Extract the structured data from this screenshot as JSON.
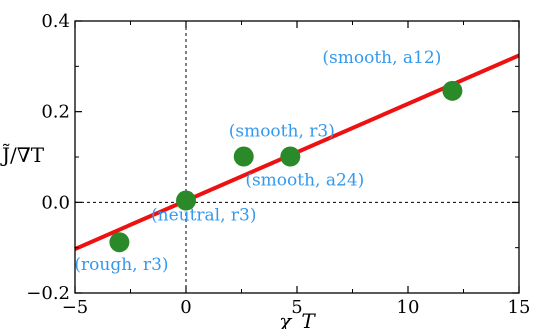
{
  "chart_data": {
    "type": "scatter",
    "xlabel": "χ_T",
    "ylabel": "J̃/∇T",
    "xlim": [
      -5,
      15
    ],
    "ylim": [
      -0.2,
      0.4
    ],
    "x_ticks": [
      -5,
      0,
      5,
      10,
      15
    ],
    "x_tick_labels": [
      "−5",
      "0",
      "5",
      "10",
      "15"
    ],
    "y_ticks": [
      -0.2,
      0.0,
      0.2,
      0.4
    ],
    "y_tick_labels": [
      "−0.2",
      "0.0",
      "0.2",
      "0.4"
    ],
    "points": [
      {
        "x": -3.0,
        "y": -0.088,
        "label": "(rough, r3)"
      },
      {
        "x": 0.0,
        "y": 0.004,
        "label": "(neutral, r3)"
      },
      {
        "x": 2.6,
        "y": 0.101,
        "label": "(smooth, r3)"
      },
      {
        "x": 4.7,
        "y": 0.101,
        "label": "(smooth, a24)"
      },
      {
        "x": 12.0,
        "y": 0.246,
        "label": "(smooth, a12)"
      }
    ],
    "fit_line": {
      "x": [
        -5,
        15
      ],
      "y": [
        -0.103,
        0.324
      ]
    },
    "reference_lines": {
      "x": 0,
      "y": 0
    },
    "colors": {
      "points": "#2a8a2a",
      "fit_line": "#ee1111",
      "labels": "#3399ee"
    },
    "grid": false
  }
}
